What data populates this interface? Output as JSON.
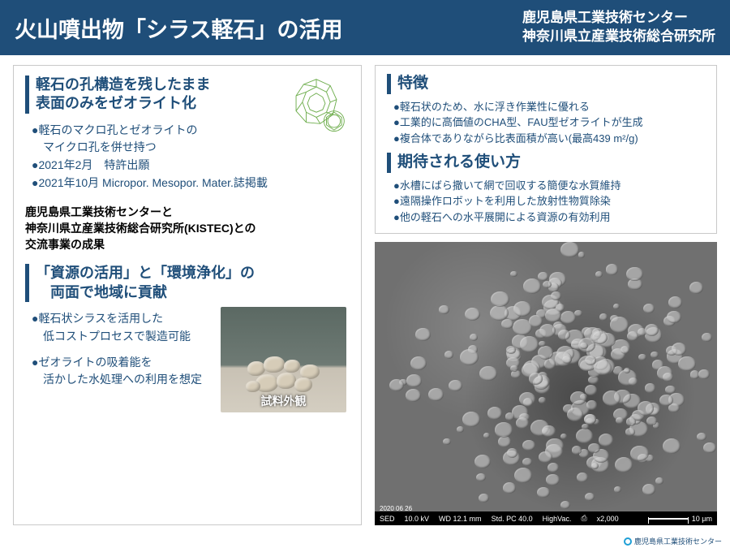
{
  "header": {
    "title": "火山噴出物「シラス軽石」の活用",
    "org1": "鹿児島県工業技術センター",
    "org2": "神奈川県立産業技術総合研究所"
  },
  "left": {
    "heading1_l1": "軽石の孔構造を残したまま",
    "heading1_l2": "表面のみをゼオライト化",
    "b1": "●軽石のマクロ孔とゼオライトの",
    "b1b": "　マイクロ孔を併せ持つ",
    "b2": "●2021年2月　特許出願",
    "b3": "●2021年10月 Micropor. Mesopor. Mater.誌掲載",
    "bold_l1": "鹿児島県工業技術センターと",
    "bold_l2": "神奈川県立産業技術総合研究所(KISTEC)との",
    "bold_l3": "交流事業の成果",
    "heading2_l1": "「資源の活用」と「環境浄化」の",
    "heading2_l2": "　両面で地域に貢献",
    "c1": "●軽石状シラスを活用した",
    "c1b": "　低コストプロセスで製造可能",
    "c2": "●ゼオライトの吸着能を",
    "c2b": "　活かした水処理への利用を想定",
    "sample_caption": "試料外観"
  },
  "right": {
    "features_h": "特徴",
    "f1": "●軽石状のため、水に浮き作業性に優れる",
    "f2": "●工業的に高価値のCHA型、FAU型ゼオライトが生成",
    "f3": "●複合体でありながら比表面積が高い(最高439 m²/g)",
    "uses_h": "期待される使い方",
    "u1": "●水槽にばら撒いて網で回収する簡便な水質維持",
    "u2": "●遠隔操作ロボットを利用した放射性物質除染",
    "u3": "●他の軽石への水平展開による資源の有効利用"
  },
  "sem": {
    "sed": "SED",
    "kv": "10.0 kV",
    "wd": "WD 12.1 mm",
    "pc": "Std. PC 40.0",
    "vac": "HighVac.",
    "mag": "x2,000",
    "scale": "10 μm",
    "date": "2020 06 26"
  },
  "footer": "鹿児島県工業技術センター"
}
